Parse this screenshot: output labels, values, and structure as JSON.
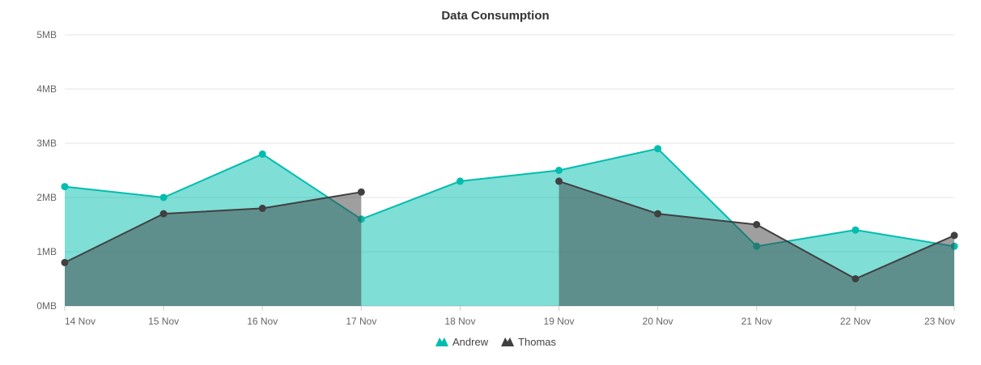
{
  "chart_data": {
    "type": "area",
    "title": "Data Consumption",
    "xlabel": "",
    "ylabel": "",
    "categories": [
      "14 Nov",
      "15 Nov",
      "16 Nov",
      "17 Nov",
      "18 Nov",
      "19 Nov",
      "20 Nov",
      "21 Nov",
      "22 Nov",
      "23 Nov"
    ],
    "ylim": [
      0,
      5
    ],
    "yticks": [
      0,
      1,
      2,
      3,
      4,
      5
    ],
    "ytick_labels": [
      "0MB",
      "1MB",
      "2MB",
      "3MB",
      "4MB",
      "5MB"
    ],
    "grid": true,
    "legend_position": "bottom",
    "series": [
      {
        "name": "Andrew",
        "color": "#00bdae",
        "values": [
          2.2,
          2.0,
          2.8,
          1.6,
          2.3,
          2.5,
          2.9,
          1.1,
          1.4,
          1.1
        ]
      },
      {
        "name": "Thomas",
        "color": "#404041",
        "values": [
          0.8,
          1.7,
          1.8,
          2.1,
          null,
          2.3,
          1.7,
          1.5,
          0.5,
          1.3
        ]
      }
    ]
  }
}
